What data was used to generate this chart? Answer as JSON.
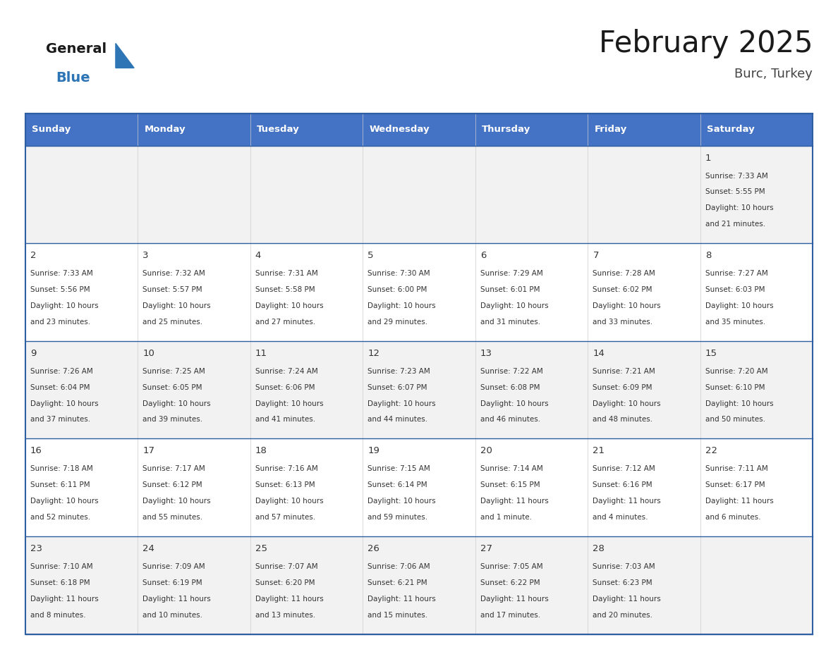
{
  "title": "February 2025",
  "subtitle": "Burc, Turkey",
  "header_bg": "#4472C4",
  "header_text_color": "#FFFFFF",
  "days_of_week": [
    "Sunday",
    "Monday",
    "Tuesday",
    "Wednesday",
    "Thursday",
    "Friday",
    "Saturday"
  ],
  "row_bg_even": "#F2F2F2",
  "row_bg_odd": "#FFFFFF",
  "border_color": "#2E5FA3",
  "text_color": "#333333",
  "logo_black": "#1a1a1a",
  "logo_blue": "#2E75B6",
  "triangle_color": "#2E75B6",
  "cells": [
    {
      "day": null,
      "col": 0,
      "row": 0
    },
    {
      "day": null,
      "col": 1,
      "row": 0
    },
    {
      "day": null,
      "col": 2,
      "row": 0
    },
    {
      "day": null,
      "col": 3,
      "row": 0
    },
    {
      "day": null,
      "col": 4,
      "row": 0
    },
    {
      "day": null,
      "col": 5,
      "row": 0
    },
    {
      "day": 1,
      "col": 6,
      "row": 0,
      "sunrise": "7:33 AM",
      "sunset": "5:55 PM",
      "daylight_line1": "Daylight: 10 hours",
      "daylight_line2": "and 21 minutes."
    },
    {
      "day": 2,
      "col": 0,
      "row": 1,
      "sunrise": "7:33 AM",
      "sunset": "5:56 PM",
      "daylight_line1": "Daylight: 10 hours",
      "daylight_line2": "and 23 minutes."
    },
    {
      "day": 3,
      "col": 1,
      "row": 1,
      "sunrise": "7:32 AM",
      "sunset": "5:57 PM",
      "daylight_line1": "Daylight: 10 hours",
      "daylight_line2": "and 25 minutes."
    },
    {
      "day": 4,
      "col": 2,
      "row": 1,
      "sunrise": "7:31 AM",
      "sunset": "5:58 PM",
      "daylight_line1": "Daylight: 10 hours",
      "daylight_line2": "and 27 minutes."
    },
    {
      "day": 5,
      "col": 3,
      "row": 1,
      "sunrise": "7:30 AM",
      "sunset": "6:00 PM",
      "daylight_line1": "Daylight: 10 hours",
      "daylight_line2": "and 29 minutes."
    },
    {
      "day": 6,
      "col": 4,
      "row": 1,
      "sunrise": "7:29 AM",
      "sunset": "6:01 PM",
      "daylight_line1": "Daylight: 10 hours",
      "daylight_line2": "and 31 minutes."
    },
    {
      "day": 7,
      "col": 5,
      "row": 1,
      "sunrise": "7:28 AM",
      "sunset": "6:02 PM",
      "daylight_line1": "Daylight: 10 hours",
      "daylight_line2": "and 33 minutes."
    },
    {
      "day": 8,
      "col": 6,
      "row": 1,
      "sunrise": "7:27 AM",
      "sunset": "6:03 PM",
      "daylight_line1": "Daylight: 10 hours",
      "daylight_line2": "and 35 minutes."
    },
    {
      "day": 9,
      "col": 0,
      "row": 2,
      "sunrise": "7:26 AM",
      "sunset": "6:04 PM",
      "daylight_line1": "Daylight: 10 hours",
      "daylight_line2": "and 37 minutes."
    },
    {
      "day": 10,
      "col": 1,
      "row": 2,
      "sunrise": "7:25 AM",
      "sunset": "6:05 PM",
      "daylight_line1": "Daylight: 10 hours",
      "daylight_line2": "and 39 minutes."
    },
    {
      "day": 11,
      "col": 2,
      "row": 2,
      "sunrise": "7:24 AM",
      "sunset": "6:06 PM",
      "daylight_line1": "Daylight: 10 hours",
      "daylight_line2": "and 41 minutes."
    },
    {
      "day": 12,
      "col": 3,
      "row": 2,
      "sunrise": "7:23 AM",
      "sunset": "6:07 PM",
      "daylight_line1": "Daylight: 10 hours",
      "daylight_line2": "and 44 minutes."
    },
    {
      "day": 13,
      "col": 4,
      "row": 2,
      "sunrise": "7:22 AM",
      "sunset": "6:08 PM",
      "daylight_line1": "Daylight: 10 hours",
      "daylight_line2": "and 46 minutes."
    },
    {
      "day": 14,
      "col": 5,
      "row": 2,
      "sunrise": "7:21 AM",
      "sunset": "6:09 PM",
      "daylight_line1": "Daylight: 10 hours",
      "daylight_line2": "and 48 minutes."
    },
    {
      "day": 15,
      "col": 6,
      "row": 2,
      "sunrise": "7:20 AM",
      "sunset": "6:10 PM",
      "daylight_line1": "Daylight: 10 hours",
      "daylight_line2": "and 50 minutes."
    },
    {
      "day": 16,
      "col": 0,
      "row": 3,
      "sunrise": "7:18 AM",
      "sunset": "6:11 PM",
      "daylight_line1": "Daylight: 10 hours",
      "daylight_line2": "and 52 minutes."
    },
    {
      "day": 17,
      "col": 1,
      "row": 3,
      "sunrise": "7:17 AM",
      "sunset": "6:12 PM",
      "daylight_line1": "Daylight: 10 hours",
      "daylight_line2": "and 55 minutes."
    },
    {
      "day": 18,
      "col": 2,
      "row": 3,
      "sunrise": "7:16 AM",
      "sunset": "6:13 PM",
      "daylight_line1": "Daylight: 10 hours",
      "daylight_line2": "and 57 minutes."
    },
    {
      "day": 19,
      "col": 3,
      "row": 3,
      "sunrise": "7:15 AM",
      "sunset": "6:14 PM",
      "daylight_line1": "Daylight: 10 hours",
      "daylight_line2": "and 59 minutes."
    },
    {
      "day": 20,
      "col": 4,
      "row": 3,
      "sunrise": "7:14 AM",
      "sunset": "6:15 PM",
      "daylight_line1": "Daylight: 11 hours",
      "daylight_line2": "and 1 minute."
    },
    {
      "day": 21,
      "col": 5,
      "row": 3,
      "sunrise": "7:12 AM",
      "sunset": "6:16 PM",
      "daylight_line1": "Daylight: 11 hours",
      "daylight_line2": "and 4 minutes."
    },
    {
      "day": 22,
      "col": 6,
      "row": 3,
      "sunrise": "7:11 AM",
      "sunset": "6:17 PM",
      "daylight_line1": "Daylight: 11 hours",
      "daylight_line2": "and 6 minutes."
    },
    {
      "day": 23,
      "col": 0,
      "row": 4,
      "sunrise": "7:10 AM",
      "sunset": "6:18 PM",
      "daylight_line1": "Daylight: 11 hours",
      "daylight_line2": "and 8 minutes."
    },
    {
      "day": 24,
      "col": 1,
      "row": 4,
      "sunrise": "7:09 AM",
      "sunset": "6:19 PM",
      "daylight_line1": "Daylight: 11 hours",
      "daylight_line2": "and 10 minutes."
    },
    {
      "day": 25,
      "col": 2,
      "row": 4,
      "sunrise": "7:07 AM",
      "sunset": "6:20 PM",
      "daylight_line1": "Daylight: 11 hours",
      "daylight_line2": "and 13 minutes."
    },
    {
      "day": 26,
      "col": 3,
      "row": 4,
      "sunrise": "7:06 AM",
      "sunset": "6:21 PM",
      "daylight_line1": "Daylight: 11 hours",
      "daylight_line2": "and 15 minutes."
    },
    {
      "day": 27,
      "col": 4,
      "row": 4,
      "sunrise": "7:05 AM",
      "sunset": "6:22 PM",
      "daylight_line1": "Daylight: 11 hours",
      "daylight_line2": "and 17 minutes."
    },
    {
      "day": 28,
      "col": 5,
      "row": 4,
      "sunrise": "7:03 AM",
      "sunset": "6:23 PM",
      "daylight_line1": "Daylight: 11 hours",
      "daylight_line2": "and 20 minutes."
    },
    {
      "day": null,
      "col": 6,
      "row": 4
    }
  ]
}
